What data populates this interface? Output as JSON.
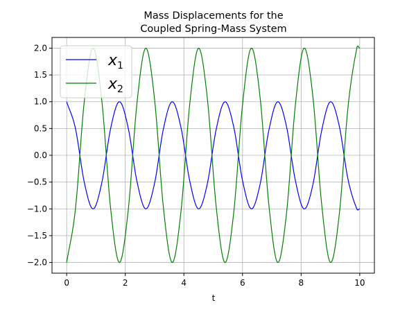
{
  "chart_data": {
    "type": "line",
    "title_lines": [
      "Mass Displacements for the",
      "Coupled Spring-Mass System"
    ],
    "xlabel": "t",
    "ylabel": "",
    "xlim": [
      -0.5,
      10.5
    ],
    "ylim": [
      -2.2,
      2.2
    ],
    "xticks": [
      0,
      2,
      4,
      6,
      8,
      10
    ],
    "yticks": [
      -2.0,
      -1.5,
      -1.0,
      -0.5,
      0.0,
      0.5,
      1.0,
      1.5,
      2.0
    ],
    "xtick_labels": [
      "0",
      "2",
      "4",
      "6",
      "8",
      "10"
    ],
    "ytick_labels": [
      "−2.0",
      "−1.5",
      "−1.0",
      "−0.5",
      "0.0",
      "0.5",
      "1.0",
      "1.5",
      "2.0"
    ],
    "grid": true,
    "legend_position": "top-left",
    "series": [
      {
        "name": "x1",
        "legend_main": "x",
        "legend_sub": "1",
        "color": "#0000ff",
        "x": [
          0,
          0.3,
          0.6,
          0.9,
          1.2,
          1.5,
          1.8,
          2.1,
          2.4,
          2.7,
          3.0,
          3.3,
          3.6,
          3.9,
          4.2,
          4.5,
          4.8,
          5.1,
          5.4,
          5.7,
          6.0,
          6.3,
          6.6,
          6.9,
          7.2,
          7.5,
          7.8,
          8.1,
          8.4,
          8.7,
          9.0,
          9.3,
          9.6,
          9.9,
          10.0
        ],
        "y": [
          1.0,
          0.5,
          -0.5,
          -1.0,
          -0.51,
          0.5,
          1.0,
          0.51,
          -0.49,
          -1.0,
          -0.52,
          0.49,
          1.0,
          0.52,
          -0.48,
          -1.0,
          -0.53,
          0.48,
          1.0,
          0.53,
          -0.47,
          -1.0,
          -0.54,
          0.47,
          1.0,
          0.54,
          -0.46,
          -1.0,
          -0.55,
          0.46,
          1.0,
          0.55,
          -0.45,
          -1.0,
          -1.0
        ]
      },
      {
        "name": "x2",
        "legend_main": "x",
        "legend_sub": "2",
        "color": "#008000",
        "x": [
          0,
          0.3,
          0.6,
          0.9,
          1.2,
          1.5,
          1.8,
          2.1,
          2.4,
          2.7,
          3.0,
          3.3,
          3.6,
          3.9,
          4.2,
          4.5,
          4.8,
          5.1,
          5.4,
          5.7,
          6.0,
          6.3,
          6.6,
          6.9,
          7.2,
          7.5,
          7.8,
          8.1,
          8.4,
          8.7,
          9.0,
          9.3,
          9.6,
          9.9,
          10.0
        ],
        "y": [
          -2.0,
          -1.0,
          1.0,
          2.0,
          1.02,
          -0.99,
          -2.0,
          -1.03,
          0.98,
          2.0,
          1.04,
          -0.97,
          -2.0,
          -1.05,
          0.96,
          2.0,
          1.06,
          -0.95,
          -2.0,
          -1.07,
          0.94,
          2.0,
          1.08,
          -0.93,
          -2.0,
          -1.09,
          0.92,
          2.0,
          1.1,
          -0.91,
          -2.0,
          -1.11,
          0.9,
          2.0,
          2.0
        ]
      }
    ]
  }
}
